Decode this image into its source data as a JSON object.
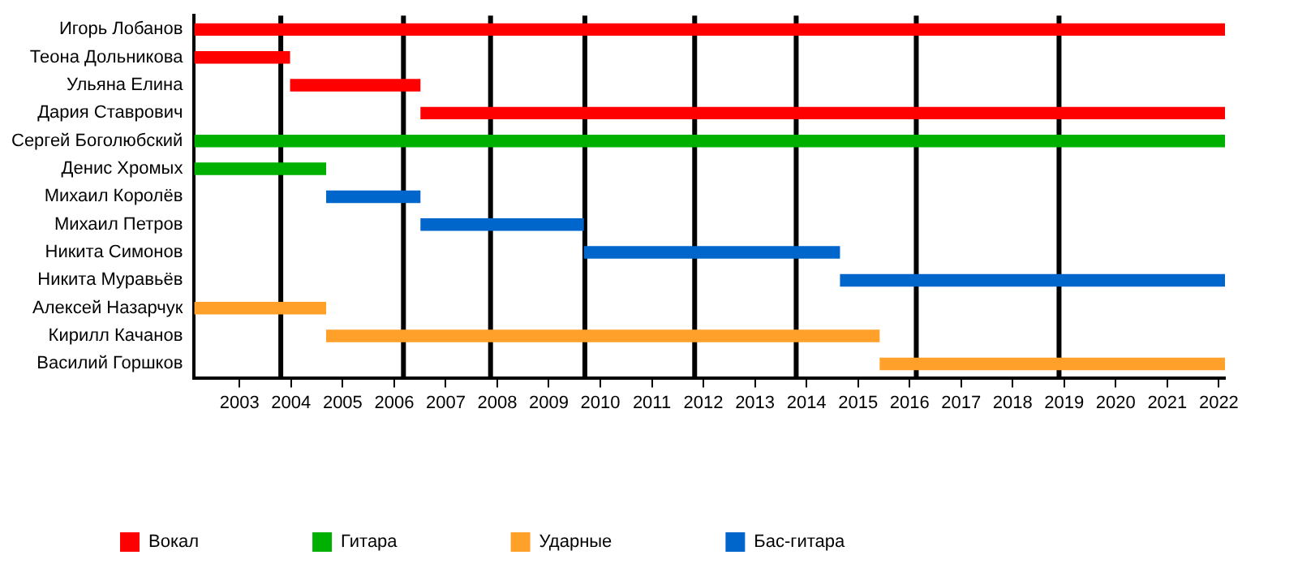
{
  "chart_data": {
    "type": "bar",
    "orientation": "horizontal",
    "categories": [
      "Игорь Лобанов",
      "Теона Дольникова",
      "Ульяна Елина",
      "Дария Ставрович",
      "Сергей Боголюбский",
      "Денис Хромых",
      "Михаил Королёв",
      "Михаил Петров",
      "Никита Симонов",
      "Никита Муравьёв",
      "Алексей Назарчук",
      "Кирилл Качанов",
      "Василий Горшков"
    ],
    "series": [
      {
        "name": "Вокал",
        "color": "#ff0000",
        "base": [
          2002.12,
          2002.12,
          2003.98,
          2006.51,
          null,
          null,
          null,
          null,
          null,
          null,
          null,
          null,
          null
        ],
        "values": [
          20.0,
          1.86,
          2.53,
          15.61,
          null,
          null,
          null,
          null,
          null,
          null,
          null,
          null,
          null
        ]
      },
      {
        "name": "Гитара",
        "color": "#00b000",
        "base": [
          null,
          null,
          null,
          null,
          2002.12,
          2002.12,
          null,
          null,
          null,
          null,
          null,
          null,
          null
        ],
        "values": [
          null,
          null,
          null,
          null,
          20.0,
          2.56,
          null,
          null,
          null,
          null,
          null,
          null,
          null
        ]
      },
      {
        "name": "Ударные",
        "color": "#ffa02a",
        "base": [
          null,
          null,
          null,
          null,
          null,
          null,
          null,
          null,
          null,
          null,
          2002.12,
          2004.68,
          2015.42
        ],
        "values": [
          null,
          null,
          null,
          null,
          null,
          null,
          null,
          null,
          null,
          null,
          2.56,
          10.74,
          6.7
        ]
      },
      {
        "name": "Бас-гитара",
        "color": "#0066cc",
        "base": [
          null,
          null,
          null,
          null,
          null,
          null,
          2004.68,
          2006.51,
          2009.68,
          2014.65,
          null,
          null,
          null
        ],
        "values": [
          null,
          null,
          null,
          null,
          null,
          null,
          1.83,
          3.17,
          4.97,
          7.47,
          null,
          null,
          null
        ]
      }
    ],
    "xlim": [
      2002.12,
      2022.12
    ],
    "xticks": [
      2003,
      2004,
      2005,
      2006,
      2007,
      2008,
      2009,
      2010,
      2011,
      2012,
      2013,
      2014,
      2015,
      2016,
      2017,
      2018,
      2019,
      2020,
      2021,
      2022
    ],
    "ref_lines": [
      {
        "axis": "x",
        "value": 2003.8,
        "color": "#000000"
      },
      {
        "axis": "x",
        "value": 2006.18,
        "color": "#000000"
      },
      {
        "axis": "x",
        "value": 2007.87,
        "color": "#000000"
      },
      {
        "axis": "x",
        "value": 2009.7,
        "color": "#000000"
      },
      {
        "axis": "x",
        "value": 2011.83,
        "color": "#000000"
      },
      {
        "axis": "x",
        "value": 2013.8,
        "color": "#000000"
      },
      {
        "axis": "x",
        "value": 2016.13,
        "color": "#000000"
      },
      {
        "axis": "x",
        "value": 2018.9,
        "color": "#000000"
      }
    ],
    "grid": false,
    "legend": "bottom"
  }
}
